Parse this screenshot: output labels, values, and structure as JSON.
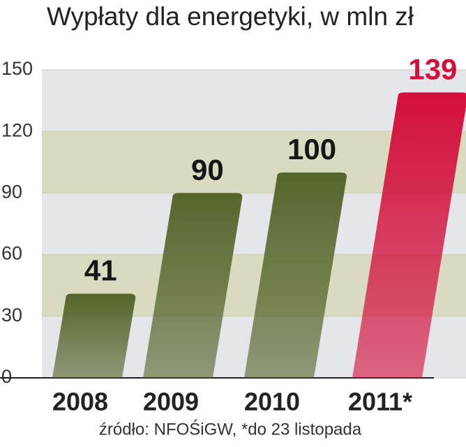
{
  "chart_data": {
    "type": "bar",
    "title": "Wypłaty dla energetyki, w mln zł",
    "categories": [
      "2008",
      "2009",
      "2010",
      "2011*"
    ],
    "values": [
      41,
      90,
      100,
      139
    ],
    "colors": [
      "#55652a",
      "#55652a",
      "#55652a",
      "#d30f3b"
    ],
    "label_colors": [
      "#161616",
      "#161616",
      "#161616",
      "#d30f3b"
    ],
    "ylim": [
      0,
      150
    ],
    "yticks": [
      0,
      30,
      60,
      90,
      120,
      150
    ],
    "grid": true,
    "source": "źródło: NFOŚiGW, *do 23 listopada"
  }
}
